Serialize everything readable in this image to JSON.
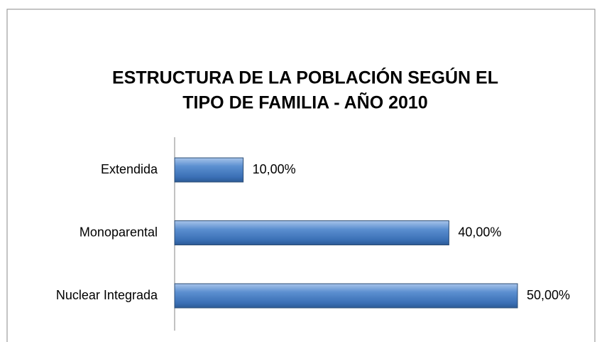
{
  "chart_data": {
    "type": "bar",
    "orientation": "horizontal",
    "title": [
      "ESTRUCTURA DE LA POBLACIÓN SEGÚN EL",
      "TIPO DE FAMILIA - AÑO 2010"
    ],
    "categories": [
      "Extendida",
      "Monoparental",
      "Nuclear Integrada"
    ],
    "values": [
      10,
      40,
      50
    ],
    "value_labels": [
      "10,00%",
      "40,00%",
      "50,00%"
    ],
    "color": "#4f81bd"
  }
}
